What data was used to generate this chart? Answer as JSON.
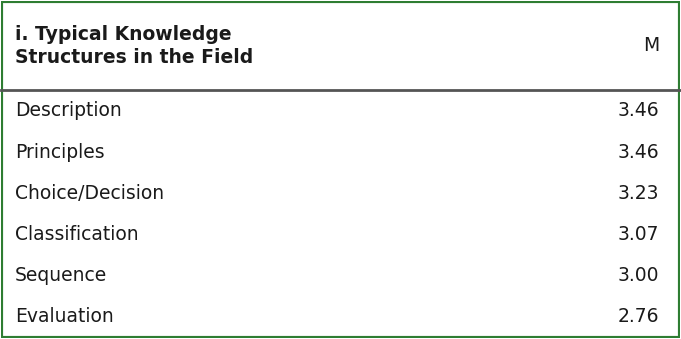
{
  "header_col1": "i. Typical Knowledge\nStructures in the Field",
  "header_col2": "M",
  "rows": [
    [
      "Description",
      "3.46"
    ],
    [
      "Principles",
      "3.46"
    ],
    [
      "Choice/Decision",
      "3.23"
    ],
    [
      "Classification",
      "3.07"
    ],
    [
      "Sequence",
      "3.00"
    ],
    [
      "Evaluation",
      "2.76"
    ]
  ],
  "background_color": "#ffffff",
  "border_color": "#2e7d32",
  "header_line_color": "#555555",
  "text_color": "#1a1a1a",
  "header_fontsize": 13.5,
  "body_fontsize": 13.5
}
